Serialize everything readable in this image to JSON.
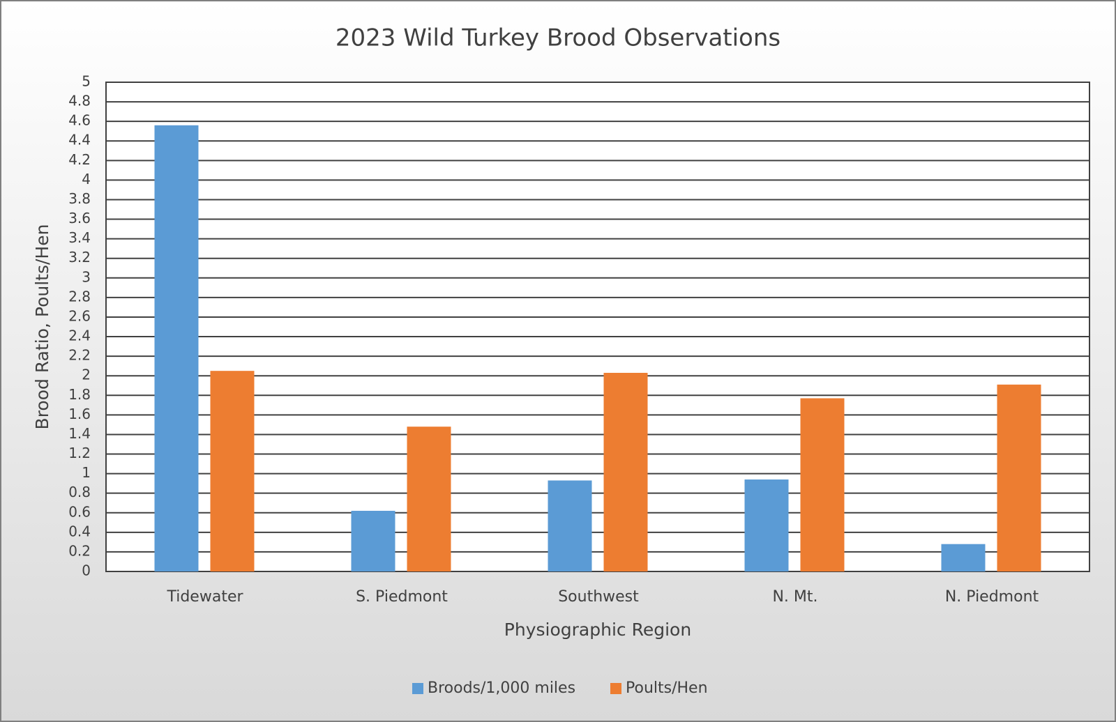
{
  "chart_data": {
    "type": "bar",
    "title": "2023 Wild Turkey Brood Observations",
    "x_label": "Physiographic Region",
    "y_label": "Brood Ratio, Poults/Hen",
    "categories": [
      "Tidewater",
      "S. Piedmont",
      "Southwest",
      "N. Mt.",
      "N. Piedmont"
    ],
    "series": [
      {
        "name": "Broods/1,000 miles",
        "color": "#5b9bd5",
        "values": [
          4.56,
          0.62,
          0.93,
          0.94,
          0.28
        ]
      },
      {
        "name": "Poults/Hen",
        "color": "#ed7d31",
        "values": [
          2.05,
          1.48,
          2.03,
          1.77,
          1.91
        ]
      }
    ],
    "ylim": [
      0,
      5
    ],
    "yticks": [
      0,
      0.2,
      0.4,
      0.6,
      0.8,
      1,
      1.2,
      1.4,
      1.6,
      1.8,
      2,
      2.2,
      2.4,
      2.6,
      2.8,
      3,
      3.2,
      3.4,
      3.6,
      3.8,
      4,
      4.2,
      4.4,
      4.6,
      4.8,
      5
    ],
    "grid": true,
    "legend": "bottom"
  }
}
